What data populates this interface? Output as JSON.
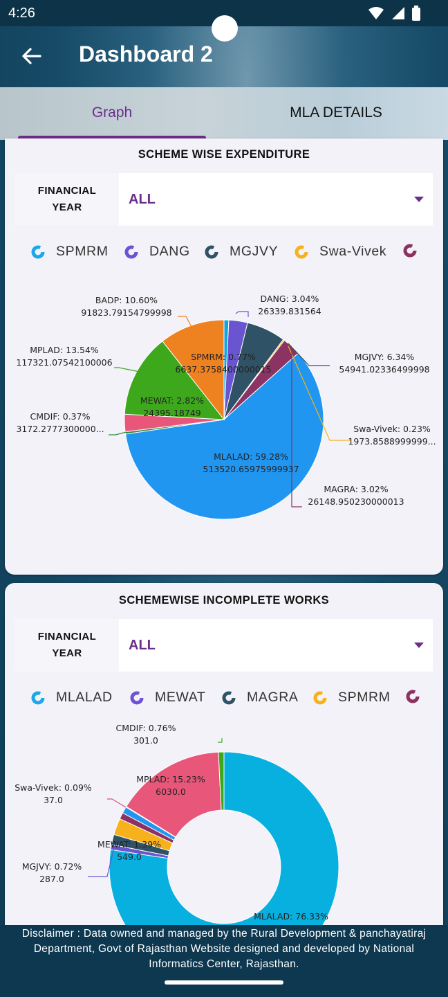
{
  "status": {
    "time": "4:26"
  },
  "appbar": {
    "title": "Dashboard 2"
  },
  "tabs": [
    {
      "label": "Graph"
    },
    {
      "label": "MLA DETAILS"
    }
  ],
  "colors": {
    "accent": "#6b2e8a"
  },
  "charts": [
    {
      "title": "SCHEME WISE EXPENDITURE",
      "filter": {
        "label_line1": "FINANCIAL",
        "label_line2": "YEAR",
        "value": "ALL"
      },
      "legend": [
        {
          "name": "SPMRM",
          "color": "#1ea7e8"
        },
        {
          "name": "DANG",
          "color": "#6e52d6"
        },
        {
          "name": "MGJVY",
          "color": "#2f5266"
        },
        {
          "name": "Swa-Vivek",
          "color": "#f7b21b"
        },
        {
          "name": "",
          "color": "#8e3062"
        }
      ]
    },
    {
      "title": "SCHEMEWISE INCOMPLETE WORKS",
      "filter": {
        "label_line1": "FINANCIAL",
        "label_line2": "YEAR",
        "value": "ALL"
      },
      "legend": [
        {
          "name": "MLALAD",
          "color": "#1ea7e8"
        },
        {
          "name": "MEWAT",
          "color": "#6e52d6"
        },
        {
          "name": "MAGRA",
          "color": "#2f5266"
        },
        {
          "name": "SPMRM",
          "color": "#f7b21b"
        },
        {
          "name": "",
          "color": "#8e3062"
        }
      ]
    }
  ],
  "chart_data": [
    {
      "type": "pie",
      "title": "SCHEME WISE EXPENDITURE",
      "slices": [
        {
          "name": "SPMRM",
          "pct": "0.77%",
          "value": "6637.3758400000015",
          "share": 0.77,
          "color": "#16a4dc"
        },
        {
          "name": "DANG",
          "pct": "3.04%",
          "value": "26339.831564",
          "share": 3.04,
          "color": "#6a55d1"
        },
        {
          "name": "MGJVY",
          "pct": "6.34%",
          "value": "54941.02336499998",
          "share": 6.34,
          "color": "#2f5266"
        },
        {
          "name": "Swa-Vivek",
          "pct": "0.23%",
          "value": "1973.8588999999...",
          "share": 0.23,
          "color": "#f7b21b"
        },
        {
          "name": "MAGRA",
          "pct": "3.02%",
          "value": "26148.950230000013",
          "share": 3.02,
          "color": "#8b3463"
        },
        {
          "name": "MLALAD",
          "pct": "59.28%",
          "value": "513520.65975999937",
          "share": 59.28,
          "color": "#2196f0"
        },
        {
          "name": "CMDIF",
          "pct": "0.37%",
          "value": "3172.2777300000...",
          "share": 0.37,
          "color": "#2e8b3a"
        },
        {
          "name": "MEWAT",
          "pct": "2.82%",
          "value": "24395.18749",
          "share": 2.82,
          "color": "#e8577a"
        },
        {
          "name": "MPLAD",
          "pct": "13.54%",
          "value": "117321.07542100006",
          "share": 13.54,
          "color": "#3ea81c"
        },
        {
          "name": "BADP",
          "pct": "10.60%",
          "value": "91823.79154799998",
          "share": 10.6,
          "color": "#ee8220"
        }
      ]
    },
    {
      "type": "pie",
      "title": "SCHEMEWISE INCOMPLETE WORKS",
      "slices": [
        {
          "name": "MLALAD",
          "pct": "76.33%",
          "value": "",
          "share": 76.33,
          "color": "#08b0df"
        },
        {
          "name": "MGJVY",
          "pct": "0.72%",
          "value": "287.0",
          "share": 0.72,
          "color": "#6a55d1"
        },
        {
          "name": "MEWAT",
          "pct": "1.39%",
          "value": "549.0",
          "share": 1.39,
          "color": "#2f5266"
        },
        {
          "name": "SPMRM",
          "pct": "",
          "value": "",
          "share": 2.3,
          "color": "#f7b21b"
        },
        {
          "name": "",
          "pct": "",
          "value": "",
          "share": 0.9,
          "color": "#8e3062"
        },
        {
          "name": "",
          "pct": "",
          "value": "",
          "share": 0.9,
          "color": "#2196f0"
        },
        {
          "name": "Swa-Vivek",
          "pct": "0.09%",
          "value": "37.0",
          "share": 0.09,
          "color": "#e05080"
        },
        {
          "name": "MPLAD",
          "pct": "15.23%",
          "value": "6030.0",
          "share": 15.23,
          "color": "#e8577a"
        },
        {
          "name": "CMDIF",
          "pct": "0.76%",
          "value": "301.0",
          "share": 0.76,
          "color": "#3ea81c"
        }
      ]
    }
  ],
  "footer": {
    "disclaimer": "Disclaimer : Data owned and managed by the Rural Development & panchayatiraj Department, Govt of Rajasthan Website designed and developed by National Informatics Center, Rajasthan."
  }
}
